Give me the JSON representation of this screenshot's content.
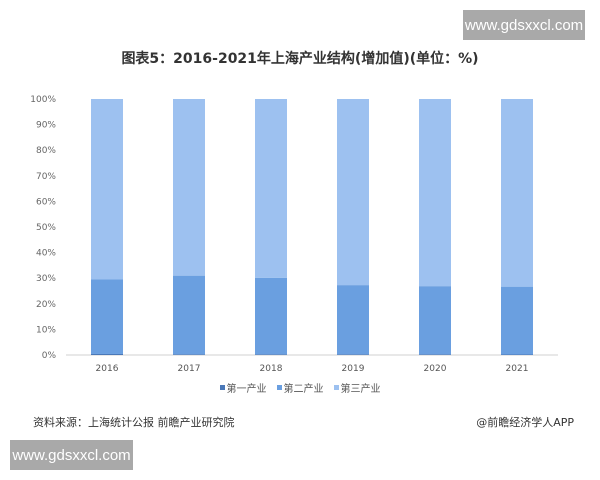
{
  "watermark_text": "www.gdsxxcl.com",
  "footer": {
    "source": "资料来源：上海统计公报 前瞻产业研究院",
    "credit": "@前瞻经济学人APP"
  },
  "chart_data": {
    "type": "bar",
    "stacked": true,
    "title": "图表5：2016-2021年上海产业结构(增加值)(单位：%)",
    "categories": [
      "2016",
      "2017",
      "2018",
      "2019",
      "2020",
      "2021"
    ],
    "series": [
      {
        "name": "第一产业",
        "color": "#4a78b8",
        "values": [
          0.4,
          0.3,
          0.3,
          0.3,
          0.3,
          0.2
        ]
      },
      {
        "name": "第二产业",
        "color": "#6a9fe0",
        "values": [
          29.1,
          30.7,
          29.8,
          27.0,
          26.6,
          26.5
        ]
      },
      {
        "name": "第三产业",
        "color": "#9dc1f0",
        "values": [
          70.5,
          69.0,
          69.9,
          72.7,
          73.1,
          73.3
        ]
      }
    ],
    "yticks": [
      "0%",
      "10%",
      "20%",
      "30%",
      "40%",
      "50%",
      "60%",
      "70%",
      "80%",
      "90%",
      "100%"
    ],
    "ylim": [
      0,
      100
    ],
    "legend": "bottom",
    "grid": false
  }
}
